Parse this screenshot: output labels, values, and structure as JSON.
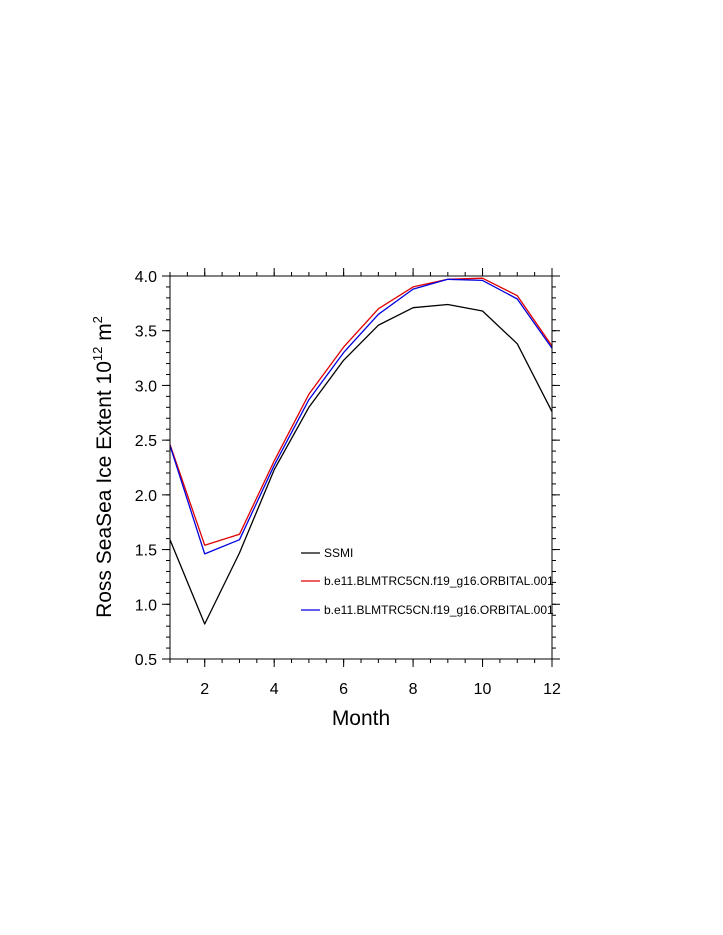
{
  "chart_data": {
    "type": "line",
    "xlabel": "Month",
    "ylabel": {
      "prefix": "Ross SeaSea Ice Extent 10",
      "sup1": "12",
      "mid": " m",
      "sup2": "2"
    },
    "xlim": [
      1,
      12
    ],
    "ylim": [
      0.5,
      4.0
    ],
    "x_ticks": [
      2,
      4,
      6,
      8,
      10,
      12
    ],
    "x_tick_labels": [
      "2",
      "4",
      "6",
      "8",
      "10",
      "12"
    ],
    "y_ticks": [
      0.5,
      1.0,
      1.5,
      2.0,
      2.5,
      3.0,
      3.5,
      4.0
    ],
    "y_tick_labels": [
      "0.5",
      "1.0",
      "1.5",
      "2.0",
      "2.5",
      "3.0",
      "3.5",
      "4.0"
    ],
    "legend_position": "center-right",
    "x": [
      1,
      2,
      3,
      4,
      5,
      6,
      7,
      8,
      9,
      10,
      11,
      12
    ],
    "series": [
      {
        "name": "SSMI",
        "color": "#000000",
        "values": [
          1.59,
          0.82,
          1.47,
          2.23,
          2.8,
          3.23,
          3.55,
          3.71,
          3.74,
          3.68,
          3.38,
          2.76
        ]
      },
      {
        "name": "b.e11.BLMTRC5CN.f19_g16.ORBITAL.001",
        "color": "#e00000",
        "values": [
          2.46,
          1.54,
          1.64,
          2.31,
          2.92,
          3.35,
          3.7,
          3.9,
          3.97,
          3.98,
          3.82,
          3.36
        ]
      },
      {
        "name": "b.e11.BLMTRC5CN.f19_g16.ORBITAL.001",
        "color": "#0000e0",
        "values": [
          2.45,
          1.46,
          1.59,
          2.27,
          2.87,
          3.3,
          3.65,
          3.88,
          3.97,
          3.96,
          3.79,
          3.34
        ]
      }
    ]
  }
}
